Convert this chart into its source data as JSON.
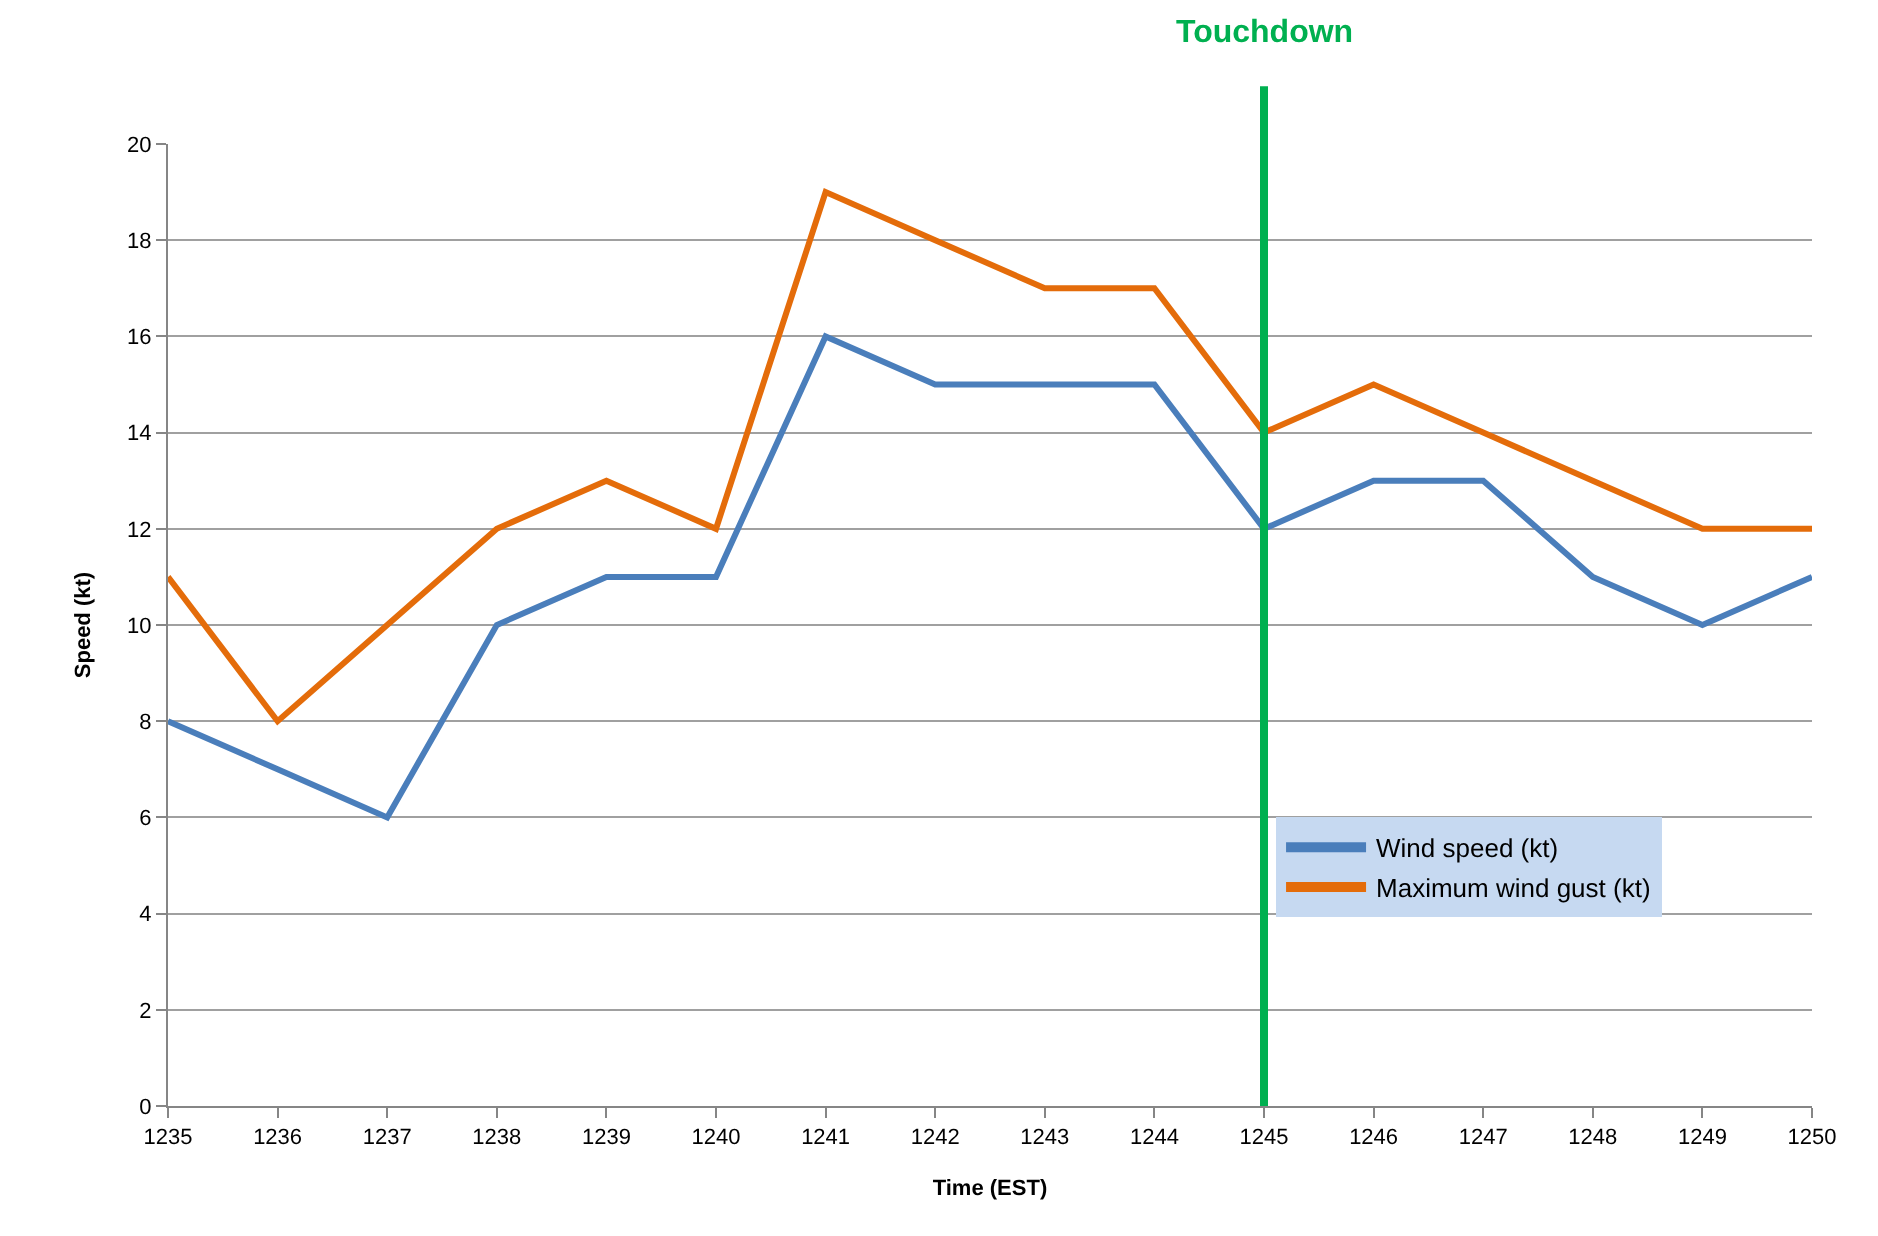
{
  "chart_data": {
    "type": "line",
    "xlabel": "Time (EST)",
    "ylabel": "Speed (kt)",
    "x": [
      1235,
      1236,
      1237,
      1238,
      1239,
      1240,
      1241,
      1242,
      1243,
      1244,
      1245,
      1246,
      1247,
      1248,
      1249,
      1250
    ],
    "series": [
      {
        "name": "Wind speed (kt)",
        "color": "#4a7ebb",
        "values": [
          8,
          7,
          6,
          10,
          11,
          11,
          16,
          15,
          15,
          15,
          12,
          13,
          13,
          11,
          10,
          11
        ]
      },
      {
        "name": "Maximum wind gust (kt)",
        "color": "#e46c0a",
        "values": [
          11,
          8,
          10,
          12,
          13,
          12,
          19,
          18,
          17,
          17,
          14,
          15,
          14,
          13,
          12,
          12
        ]
      }
    ],
    "xlim": [
      1235,
      1250
    ],
    "xticks": [
      1235,
      1236,
      1237,
      1238,
      1239,
      1240,
      1241,
      1242,
      1243,
      1244,
      1245,
      1246,
      1247,
      1248,
      1249,
      1250
    ],
    "ylim": [
      0,
      20
    ],
    "yticks": [
      0,
      2,
      4,
      6,
      8,
      10,
      12,
      14,
      16,
      18,
      20
    ],
    "ref_lines": [
      {
        "axis": "x",
        "value": 1245,
        "label": "Touchdown",
        "color": "#00b050",
        "line_style": "solid"
      }
    ],
    "grid": "y",
    "legend": "bottom right",
    "marker": "none",
    "line_style": "solid"
  }
}
